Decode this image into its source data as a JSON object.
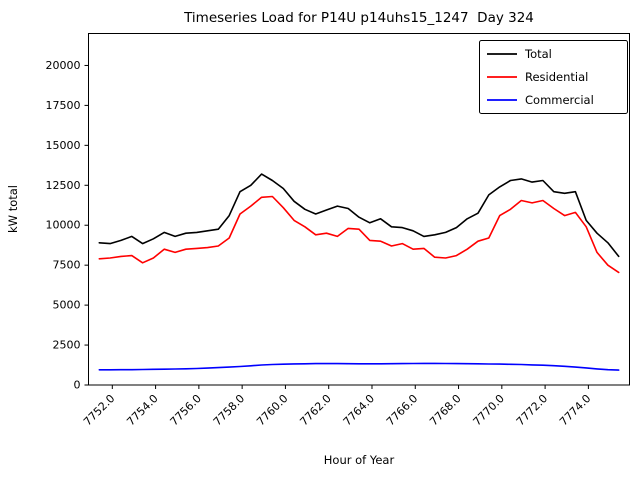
{
  "chart_data": {
    "type": "line",
    "title": "Timeseries Load for P14U p14uhs15_1247  Day 324",
    "xlabel": "Hour of Year",
    "ylabel": "kW total",
    "grid": false,
    "legend_position": "upper right",
    "xlim": [
      7750.9,
      7775.9
    ],
    "ylim": [
      0,
      22000
    ],
    "x_ticks": [
      7752,
      7754,
      7756,
      7758,
      7760,
      7762,
      7764,
      7766,
      7768,
      7770,
      7772,
      7774
    ],
    "x_tick_labels": [
      "7752.0",
      "7754.0",
      "7756.0",
      "7758.0",
      "7760.0",
      "7762.0",
      "7764.0",
      "7766.0",
      "7768.0",
      "7770.0",
      "7772.0",
      "7774.0"
    ],
    "y_ticks": [
      0,
      2500,
      5000,
      7500,
      10000,
      12500,
      15000,
      17500,
      20000
    ],
    "y_tick_labels": [
      "0",
      "2500",
      "5000",
      "7500",
      "10000",
      "12500",
      "15000",
      "17500",
      "20000"
    ],
    "x_start": 7751.4,
    "x_step": 0.5,
    "series": [
      {
        "name": "Total",
        "color": "#000000",
        "values": [
          8900,
          8850,
          9050,
          9300,
          8850,
          9150,
          9550,
          9300,
          9500,
          9550,
          9650,
          9750,
          10600,
          12100,
          12500,
          13200,
          12800,
          12300,
          11500,
          11000,
          10700,
          10950,
          11200,
          11050,
          10500,
          10150,
          10400,
          9900,
          9850,
          9650,
          9300,
          9400,
          9550,
          9850,
          10400,
          10750,
          11900,
          12400,
          12800,
          12900,
          12700,
          12800,
          12100,
          12000,
          12100,
          10300,
          9500,
          8900,
          8050
        ]
      },
      {
        "name": "Residential",
        "color": "#ff0000",
        "values": [
          7900,
          7950,
          8050,
          8100,
          7650,
          7950,
          8500,
          8300,
          8500,
          8550,
          8600,
          8700,
          9200,
          10700,
          11200,
          11750,
          11800,
          11100,
          10300,
          9900,
          9400,
          9500,
          9300,
          9800,
          9750,
          9050,
          9000,
          8700,
          8850,
          8500,
          8550,
          8000,
          7950,
          8100,
          8500,
          9000,
          9200,
          10600,
          11000,
          11550,
          11400,
          11550,
          11050,
          10600,
          10800,
          9900,
          8300,
          7500,
          7050
        ]
      },
      {
        "name": "Commercial",
        "color": "#0000ff",
        "values": [
          950,
          950,
          955,
          960,
          970,
          980,
          990,
          1000,
          1015,
          1035,
          1060,
          1090,
          1120,
          1160,
          1200,
          1250,
          1280,
          1300,
          1320,
          1330,
          1340,
          1340,
          1340,
          1335,
          1330,
          1330,
          1330,
          1335,
          1340,
          1345,
          1350,
          1350,
          1345,
          1340,
          1335,
          1325,
          1315,
          1305,
          1295,
          1280,
          1260,
          1240,
          1210,
          1170,
          1120,
          1070,
          1010,
          960,
          930
        ]
      }
    ]
  }
}
